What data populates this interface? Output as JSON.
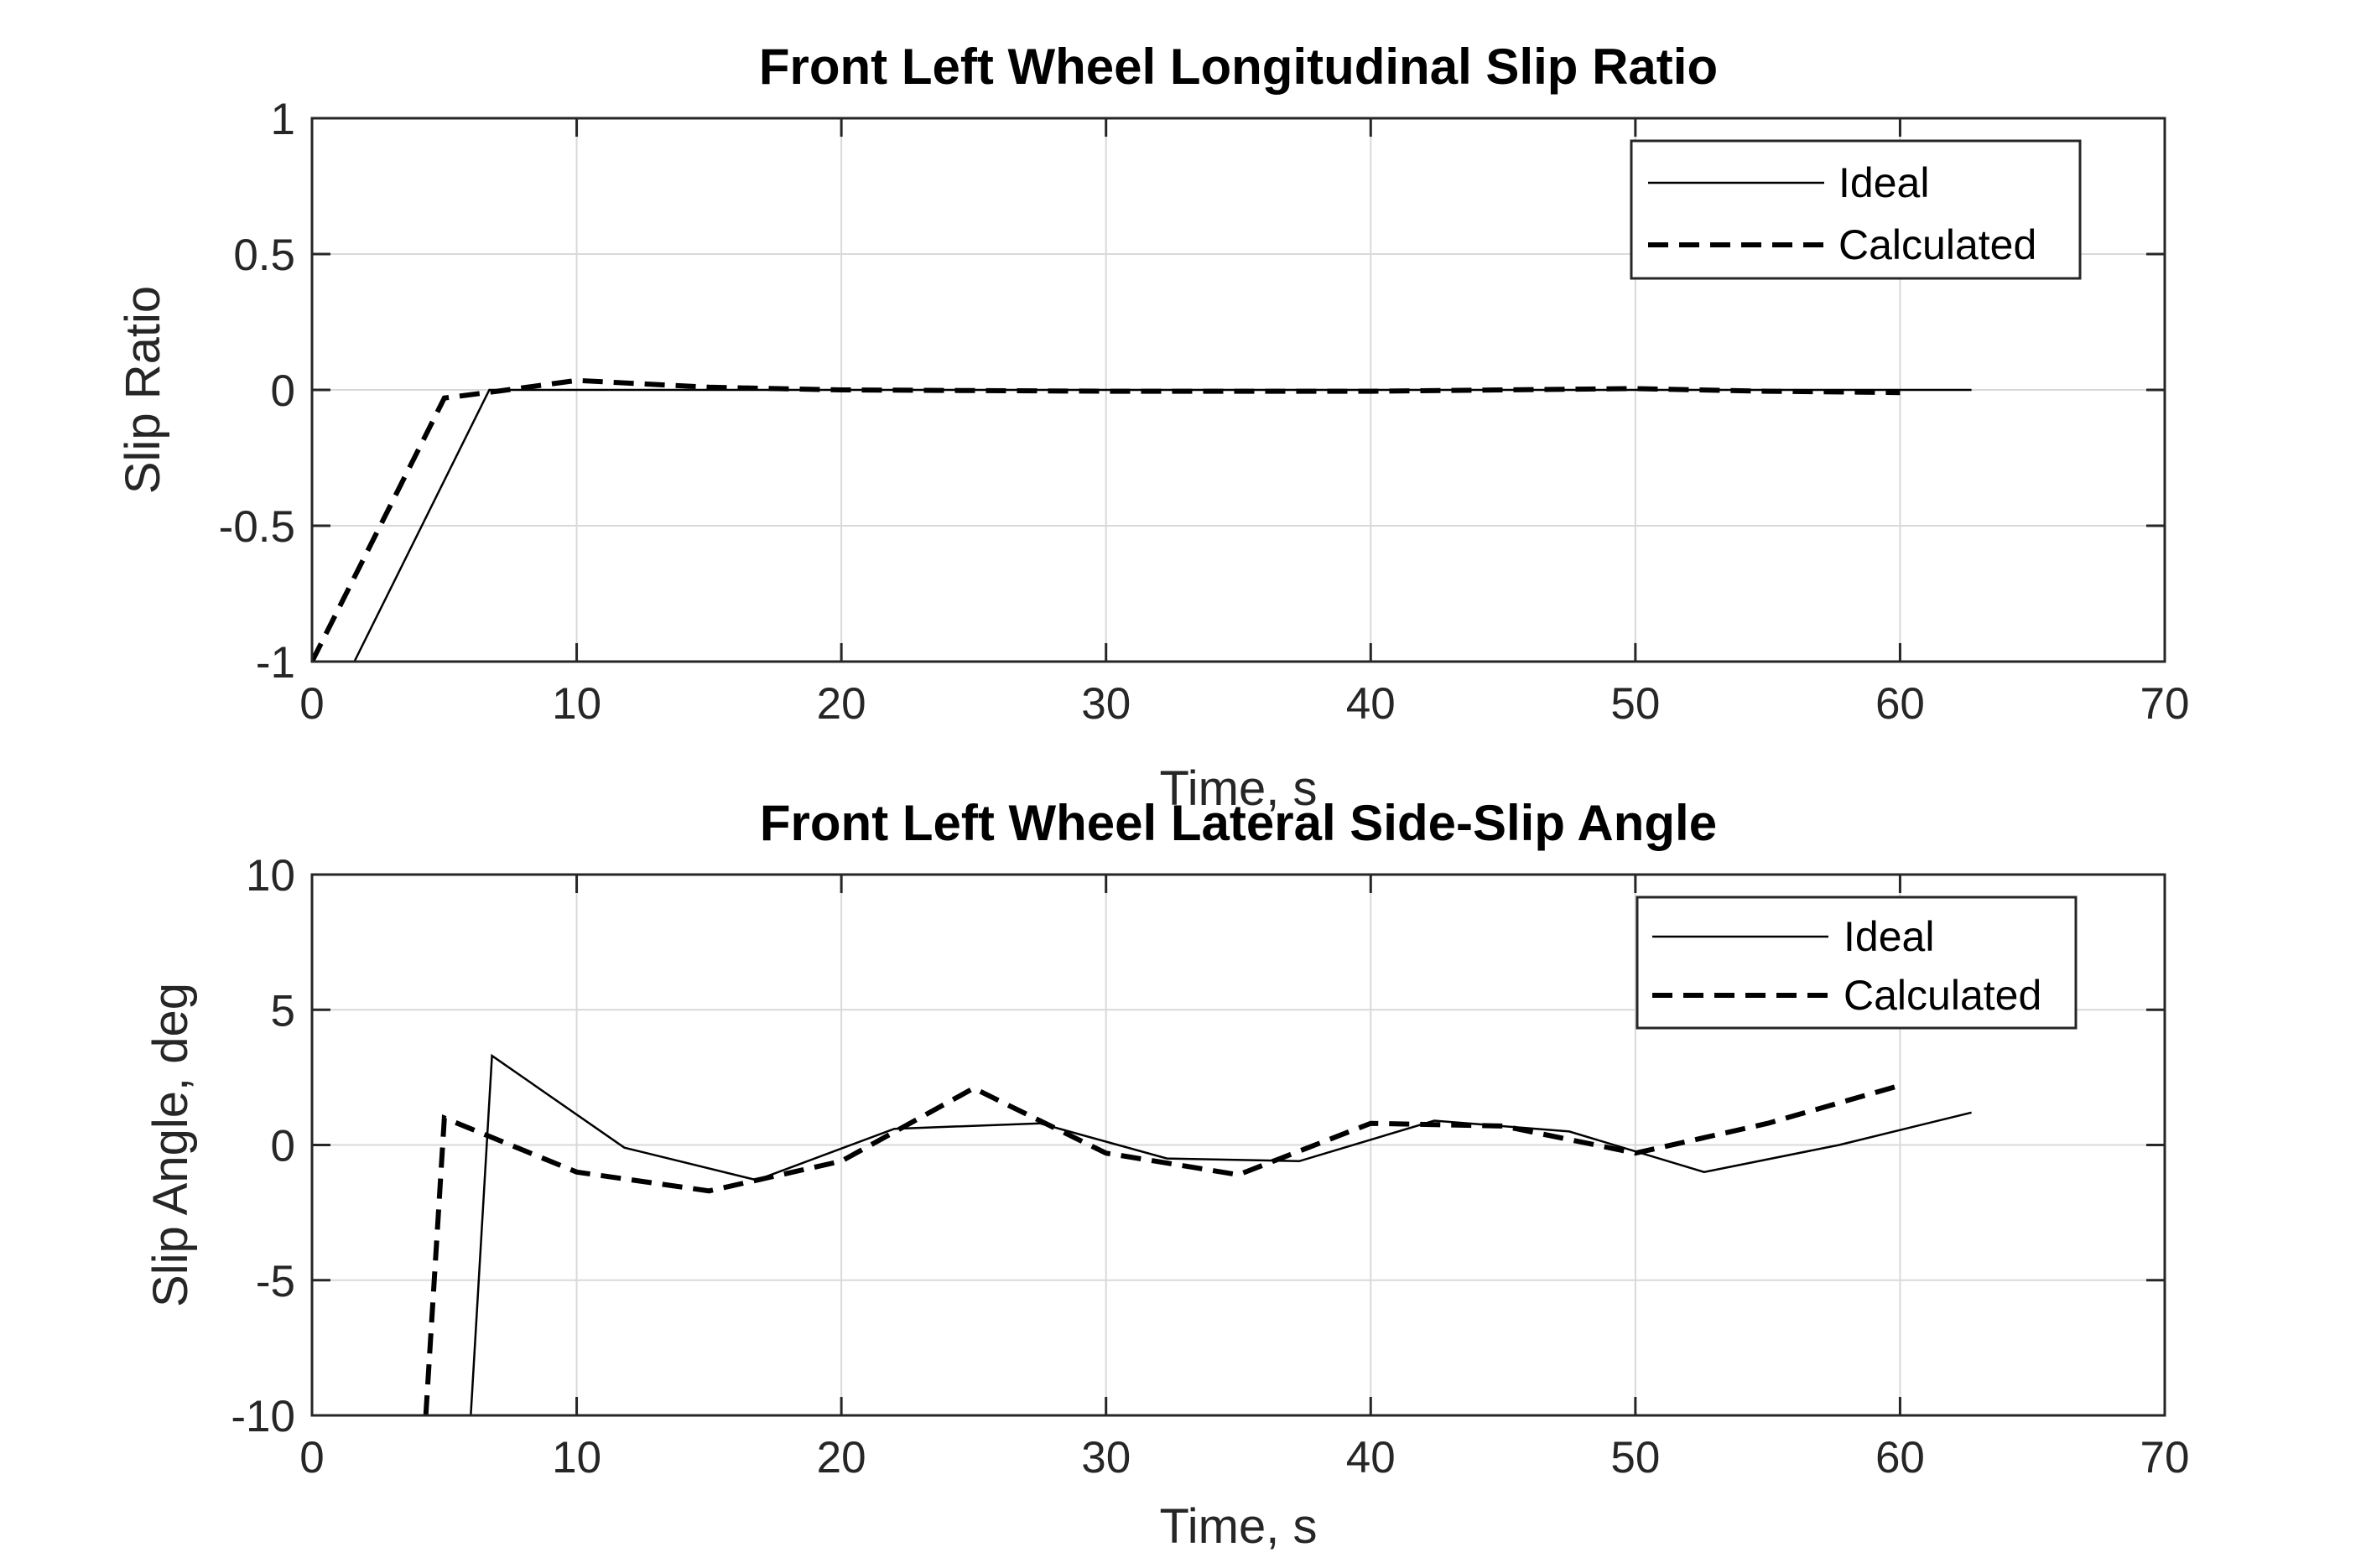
{
  "chart_data": [
    {
      "type": "line",
      "title": "Front Left Wheel Longitudinal Slip Ratio",
      "xlabel": "Time, s",
      "ylabel": "Slip Ratio",
      "xlim": [
        0,
        70
      ],
      "ylim": [
        -1,
        1
      ],
      "xticks": [
        0,
        10,
        20,
        30,
        40,
        50,
        60,
        70
      ],
      "yticks": [
        -1,
        -0.5,
        0,
        0.5,
        1
      ],
      "grid": true,
      "legend_position": "top-right",
      "series": [
        {
          "name": "Ideal",
          "style": "solid",
          "color": "#000000",
          "x": [
            0,
            1.6,
            6.7,
            10,
            20,
            30,
            40,
            50,
            62.7
          ],
          "y": [
            -1.15,
            -1,
            0,
            0,
            0,
            0,
            0,
            0,
            0
          ]
        },
        {
          "name": "Calculated",
          "style": "dashed",
          "color": "#000000",
          "x": [
            0,
            5,
            7,
            10,
            15,
            20,
            30,
            40,
            50,
            55,
            60
          ],
          "y": [
            -1,
            -0.03,
            -0.005,
            0.035,
            0.01,
            0,
            -0.005,
            -0.005,
            0.005,
            -0.005,
            -0.01
          ]
        }
      ]
    },
    {
      "type": "line",
      "title": "Front Left Wheel Lateral Side-Slip Angle",
      "xlabel": "Time, s",
      "ylabel": "Slip Angle, deg",
      "xlim": [
        0,
        70
      ],
      "ylim": [
        -10,
        10
      ],
      "xticks": [
        0,
        10,
        20,
        30,
        40,
        50,
        60,
        70
      ],
      "yticks": [
        -10,
        -5,
        0,
        5,
        10
      ],
      "grid": true,
      "legend_position": "top-right",
      "series": [
        {
          "name": "Ideal",
          "style": "solid",
          "color": "#000000",
          "x": [
            6.0,
            6.8,
            11.8,
            16.8,
            22.0,
            27.5,
            32.3,
            37.3,
            42.4,
            47.5,
            52.6,
            57.7,
            62.7
          ],
          "y": [
            -10,
            3.3,
            -0.1,
            -1.3,
            0.6,
            0.8,
            -0.5,
            -0.6,
            0.9,
            0.5,
            -1.0,
            0.0,
            1.2
          ]
        },
        {
          "name": "Calculated",
          "style": "dashed",
          "color": "#000000",
          "x": [
            4.3,
            5.0,
            10.0,
            15.0,
            20.0,
            25.0,
            30.0,
            35.0,
            40.0,
            45.0,
            50.0,
            55.0,
            60.0
          ],
          "y": [
            -10,
            1.0,
            -1.0,
            -1.7,
            -0.6,
            2.1,
            -0.3,
            -1.1,
            0.8,
            0.7,
            -0.3,
            0.8,
            2.2
          ]
        }
      ]
    }
  ]
}
